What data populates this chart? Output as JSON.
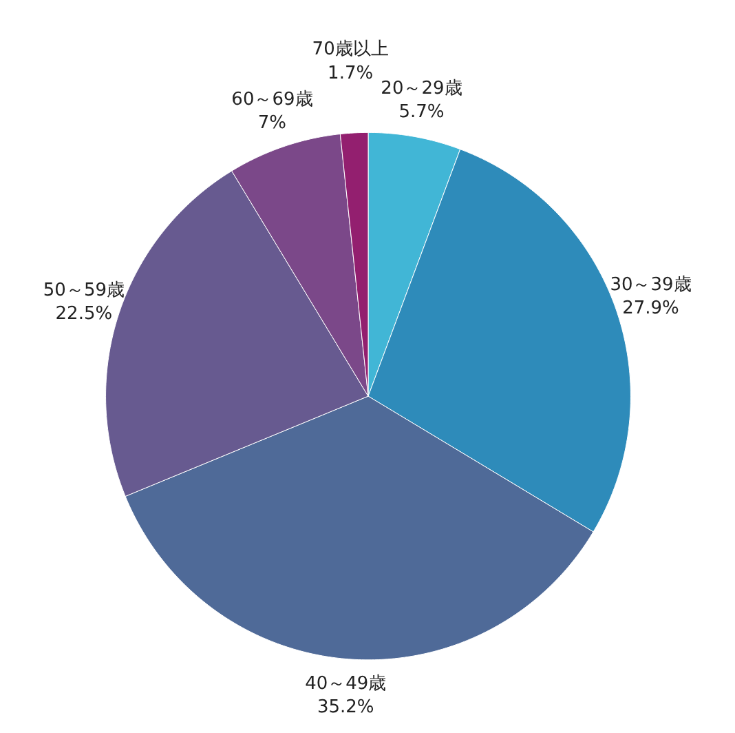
{
  "chart_data": {
    "type": "pie",
    "categories": [
      "20～29歳",
      "30～39歳",
      "40～49歳",
      "50～59歳",
      "60～69歳",
      "70歳以上"
    ],
    "values": [
      5.7,
      27.9,
      35.2,
      22.5,
      7,
      1.7
    ],
    "value_labels": [
      "5.7%",
      "27.9%",
      "35.2%",
      "22.5%",
      "7%",
      "1.7%"
    ],
    "colors": [
      "#41b6d6",
      "#2e8bba",
      "#4f6a98",
      "#675a90",
      "#7b4889",
      "#931f6f"
    ]
  }
}
